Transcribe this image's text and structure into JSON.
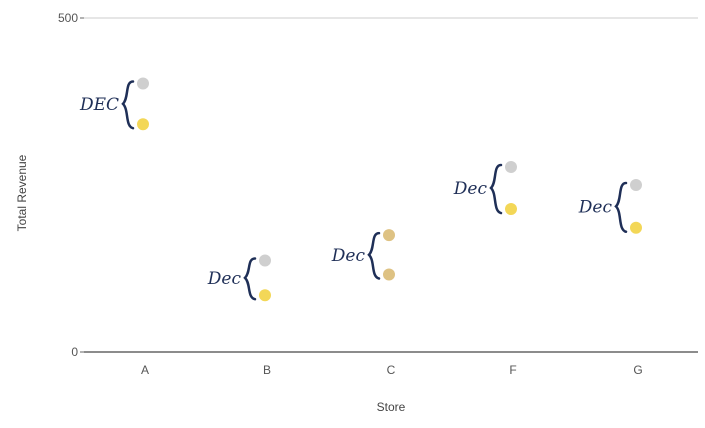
{
  "chart_data": {
    "type": "scatter",
    "title": "",
    "xlabel": "Store",
    "ylabel": "Total Revenue",
    "categories": [
      "A",
      "B",
      "C",
      "F",
      "G"
    ],
    "ylim": [
      0,
      500
    ],
    "yticks": [
      "0",
      "500"
    ],
    "grid": false,
    "series": [
      {
        "color": "#cccccc",
        "values": [
          402,
          137,
          null,
          277,
          250
        ]
      },
      {
        "color": "#f2d54e",
        "values": [
          341,
          85,
          null,
          214,
          186
        ]
      },
      {
        "color": "#dcbf7c",
        "values": [
          null,
          null,
          175,
          null,
          null
        ]
      },
      {
        "color": "#dcbf7c",
        "values": [
          null,
          null,
          116,
          null,
          null
        ]
      }
    ],
    "annotations": [
      {
        "category": "A",
        "text": "DEC"
      },
      {
        "category": "B",
        "text": "Dec"
      },
      {
        "category": "C",
        "text": "Dec"
      },
      {
        "category": "F",
        "text": "Dec"
      },
      {
        "category": "G",
        "text": "Dec"
      }
    ]
  },
  "colors": {
    "annotation_ink": "#1f2f57",
    "axis": "#666666"
  }
}
